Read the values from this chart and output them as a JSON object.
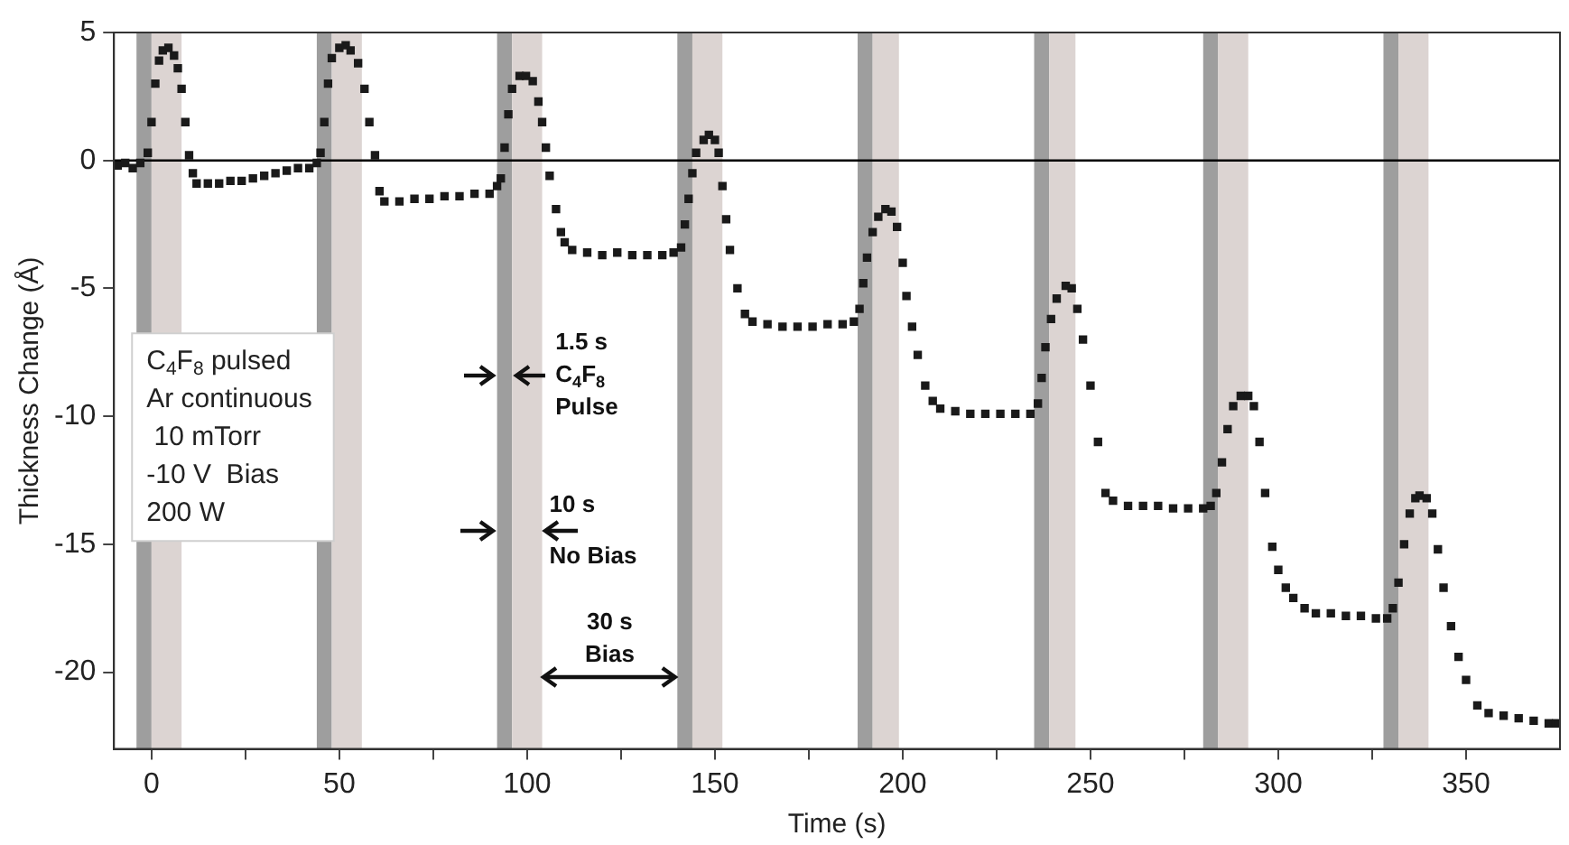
{
  "chart_data": {
    "type": "scatter",
    "xlabel": "Time (s)",
    "ylabel": "Thickness Change (Å)",
    "xlim": [
      -10,
      375
    ],
    "ylim": [
      -23,
      5
    ],
    "xticks": [
      0,
      {
        "value": 25,
        "label": null
      },
      50,
      {
        "value": 75,
        "label": null
      },
      100,
      {
        "value": 125,
        "label": null
      },
      150,
      {
        "value": 175,
        "label": null
      },
      200,
      {
        "value": 225,
        "label": null
      },
      250,
      {
        "value": 275,
        "label": null
      },
      300,
      {
        "value": 325,
        "label": null
      },
      350
    ],
    "yticks": [
      -20,
      -15,
      -10,
      -5,
      0,
      5
    ],
    "grid": false,
    "legend": false,
    "marker": "square",
    "ref_lines": [
      {
        "axis": "y",
        "value": 0,
        "color": "#000000"
      }
    ],
    "bands": [
      {
        "axis": "x",
        "from": -4,
        "to": 0,
        "color": "#9e9e9e"
      },
      {
        "axis": "x",
        "from": 0,
        "to": 8,
        "color": "#dcd4d2"
      },
      {
        "axis": "x",
        "from": 44,
        "to": 48,
        "color": "#9e9e9e"
      },
      {
        "axis": "x",
        "from": 48,
        "to": 56,
        "color": "#dcd4d2"
      },
      {
        "axis": "x",
        "from": 92,
        "to": 96,
        "color": "#9e9e9e"
      },
      {
        "axis": "x",
        "from": 96,
        "to": 104,
        "color": "#dcd4d2"
      },
      {
        "axis": "x",
        "from": 140,
        "to": 144,
        "color": "#9e9e9e"
      },
      {
        "axis": "x",
        "from": 144,
        "to": 152,
        "color": "#dcd4d2"
      },
      {
        "axis": "x",
        "from": 188,
        "to": 192,
        "color": "#9e9e9e"
      },
      {
        "axis": "x",
        "from": 192,
        "to": 199,
        "color": "#dcd4d2"
      },
      {
        "axis": "x",
        "from": 235,
        "to": 239,
        "color": "#9e9e9e"
      },
      {
        "axis": "x",
        "from": 239,
        "to": 246,
        "color": "#dcd4d2"
      },
      {
        "axis": "x",
        "from": 280,
        "to": 284,
        "color": "#9e9e9e"
      },
      {
        "axis": "x",
        "from": 284,
        "to": 292,
        "color": "#dcd4d2"
      },
      {
        "axis": "x",
        "from": 328,
        "to": 332,
        "color": "#9e9e9e"
      },
      {
        "axis": "x",
        "from": 332,
        "to": 340,
        "color": "#dcd4d2"
      }
    ],
    "annotations": [
      "C$_{4}$F$_{8}$ pulsed\nAr continuous\n 10 mTorr\n-10 V  Bias\n200 W",
      {
        "text": "1.5 s\nC$_{4}$F$_{8}$\nPulse",
        "x": 94,
        "y": -8.4
      },
      "10 s\nNo Bias",
      "30 s\nBias"
    ],
    "series": [
      {
        "color": "#1a1a1a",
        "x": [
          -9,
          -7,
          -5,
          -3,
          -1,
          0,
          1,
          2,
          3,
          4.5,
          6,
          7,
          8,
          9,
          10,
          11,
          12,
          15,
          18,
          21,
          24,
          27,
          30,
          33,
          36,
          39,
          42,
          44,
          45,
          46,
          47,
          48,
          50,
          51.7,
          53,
          55,
          56.7,
          58,
          59.5,
          60.7,
          62,
          66,
          70,
          74,
          78,
          82,
          86,
          90,
          92,
          93,
          94,
          95,
          96,
          98,
          99.7,
          101.5,
          103,
          104,
          105,
          106,
          107.7,
          109,
          110,
          112,
          116,
          120,
          124,
          128,
          132,
          136,
          139,
          141,
          142,
          143,
          144,
          145,
          147,
          148.4,
          150,
          151,
          152,
          153,
          154,
          156,
          158,
          160,
          164,
          168,
          172,
          176,
          180,
          184,
          187,
          188.5,
          189.5,
          190.5,
          192,
          193.5,
          195.4,
          197,
          198.5,
          200,
          201,
          202.5,
          204,
          206,
          208,
          210,
          214,
          218,
          222,
          226,
          230,
          234,
          236,
          237,
          238,
          239.5,
          241,
          243.4,
          245,
          246.5,
          248,
          250,
          252,
          254,
          256,
          260,
          264,
          268,
          272,
          276,
          280,
          282,
          283.5,
          285,
          286.5,
          288,
          290,
          292,
          293.5,
          295,
          296.5,
          298.4,
          300,
          302,
          304,
          307,
          310,
          314,
          318,
          322,
          326,
          329,
          330.5,
          332,
          333.5,
          335,
          336.5,
          337.6,
          339.5,
          341,
          342.5,
          344,
          346,
          348,
          350,
          353,
          356,
          360,
          364,
          368,
          372,
          374
        ],
        "values": [
          -0.2,
          -0.1,
          -0.3,
          -0.1,
          0.3,
          1.5,
          3,
          3.9,
          4.3,
          4.4,
          4.1,
          3.6,
          2.8,
          1.5,
          0.2,
          -0.5,
          -0.9,
          -0.9,
          -0.9,
          -0.8,
          -0.8,
          -0.7,
          -0.6,
          -0.5,
          -0.4,
          -0.3,
          -0.3,
          -0.1,
          0.3,
          1.5,
          3,
          4,
          4.4,
          4.5,
          4.3,
          3.8,
          2.8,
          1.5,
          0.2,
          -1.2,
          -1.6,
          -1.6,
          -1.5,
          -1.5,
          -1.4,
          -1.4,
          -1.3,
          -1.3,
          -1,
          -0.7,
          0.5,
          1.8,
          2.8,
          3.3,
          3.3,
          3.1,
          2.3,
          1.5,
          0.5,
          -0.6,
          -1.9,
          -2.8,
          -3.2,
          -3.5,
          -3.6,
          -3.7,
          -3.6,
          -3.7,
          -3.7,
          -3.7,
          -3.6,
          -3.4,
          -2.5,
          -1.5,
          -0.5,
          0.3,
          0.8,
          1,
          0.8,
          0.3,
          -1,
          -2.3,
          -3.5,
          -5,
          -6,
          -6.3,
          -6.4,
          -6.5,
          -6.5,
          -6.5,
          -6.4,
          -6.4,
          -6.3,
          -5.8,
          -4.8,
          -3.8,
          -2.8,
          -2.2,
          -1.9,
          -2,
          -2.6,
          -4,
          -5.3,
          -6.5,
          -7.6,
          -8.8,
          -9.4,
          -9.7,
          -9.8,
          -9.9,
          -9.9,
          -9.9,
          -9.9,
          -9.9,
          -9.5,
          -8.5,
          -7.3,
          -6.2,
          -5.4,
          -4.9,
          -5,
          -5.8,
          -7,
          -8.8,
          -11,
          -13,
          -13.3,
          -13.5,
          -13.5,
          -13.5,
          -13.6,
          -13.6,
          -13.6,
          -13.5,
          -13,
          -11.8,
          -10.5,
          -9.6,
          -9.2,
          -9.2,
          -9.6,
          -11,
          -13,
          -15.1,
          -16,
          -16.7,
          -17.1,
          -17.5,
          -17.7,
          -17.7,
          -17.8,
          -17.8,
          -17.9,
          -17.9,
          -17.5,
          -16.5,
          -15,
          -13.8,
          -13.2,
          -13.1,
          -13.2,
          -13.8,
          -15.2,
          -16.7,
          -18.2,
          -19.4,
          -20.3,
          -21.3,
          -21.6,
          -21.7,
          -21.8,
          -21.9,
          -22,
          -22
        ]
      }
    ]
  }
}
